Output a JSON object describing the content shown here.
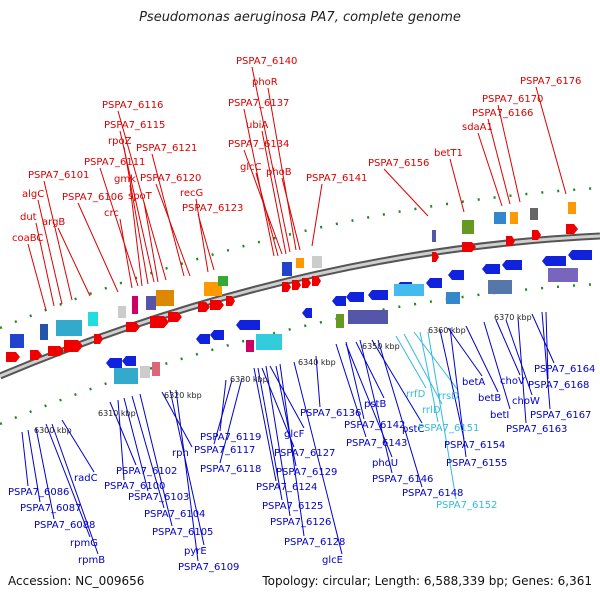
{
  "title": "Pseudomonas aeruginosa PA7, complete genome",
  "footer": {
    "accession": "Accession: NC_009656",
    "summary": "Topology: circular; Length: 6,588,339 bp; Genes: 6,361"
  },
  "colors": {
    "forward_label": "#dd0000",
    "reverse_label": "#0000cc",
    "rna_label": "#33bbdd",
    "backbone": "#999999",
    "tick": "#228822"
  },
  "scale_labels": [
    "6300 kbp",
    "6310 kbp",
    "6320 kbp",
    "6330 kbp",
    "6340 kbp",
    "6350 kbp",
    "6360 kbp",
    "6370 kbp"
  ],
  "top_labels": [
    "coaBC",
    "dut",
    "algC",
    "PSPA7_6101",
    "argB",
    "PSPA7_6106",
    "crc",
    "PSPA7_6111",
    "gmk",
    "rpoZ",
    "PSPA7_6115",
    "spoT",
    "PSPA7_6116",
    "PSPA7_6121",
    "PSPA7_6120",
    "recG",
    "PSPA7_6123",
    "PSPA7_6137",
    "PSPA7_6140",
    "phoR",
    "ubiA",
    "PSPA7_6134",
    "glcC",
    "phoB",
    "PSPA7_6141",
    "PSPA7_6156",
    "betT1",
    "sdaA1",
    "PSPA7_6166",
    "PSPA7_6170",
    "PSPA7_6176"
  ],
  "bottom_labels": [
    "PSPA7_6086",
    "PSPA7_6087",
    "PSPA7_6088",
    "radC",
    "rpmG",
    "rpmB",
    "PSPA7_6102",
    "PSPA7_6100",
    "PSPA7_6103",
    "PSPA7_6104",
    "PSPA7_6105",
    "rph",
    "pyrE",
    "PSPA7_6109",
    "PSPA7_6119",
    "PSPA7_6117",
    "PSPA7_6118",
    "glcF",
    "PSPA7_6127",
    "PSPA7_6129",
    "PSPA7_6124",
    "PSPA7_6125",
    "PSPA7_6126",
    "PSPA7_6128",
    "glcE",
    "PSPA7_6136",
    "pstB",
    "PSPA7_6142",
    "PSPA7_6143",
    "phoU",
    "pstC",
    "PSPA7_6146",
    "PSPA7_6148",
    "rrfD",
    "rrlD",
    "rrsD",
    "PSPA7_6151",
    "PSPA7_6152",
    "PSPA7_6154",
    "PSPA7_6155",
    "betA",
    "betB",
    "betI",
    "choV",
    "choW",
    "PSPA7_6164",
    "PSPA7_6168",
    "PSPA7_6167",
    "PSPA7_6163"
  ],
  "rna_labels": [
    "rrfD",
    "rrlD",
    "rrsD",
    "PSPA7_6151",
    "PSPA7_6152"
  ]
}
